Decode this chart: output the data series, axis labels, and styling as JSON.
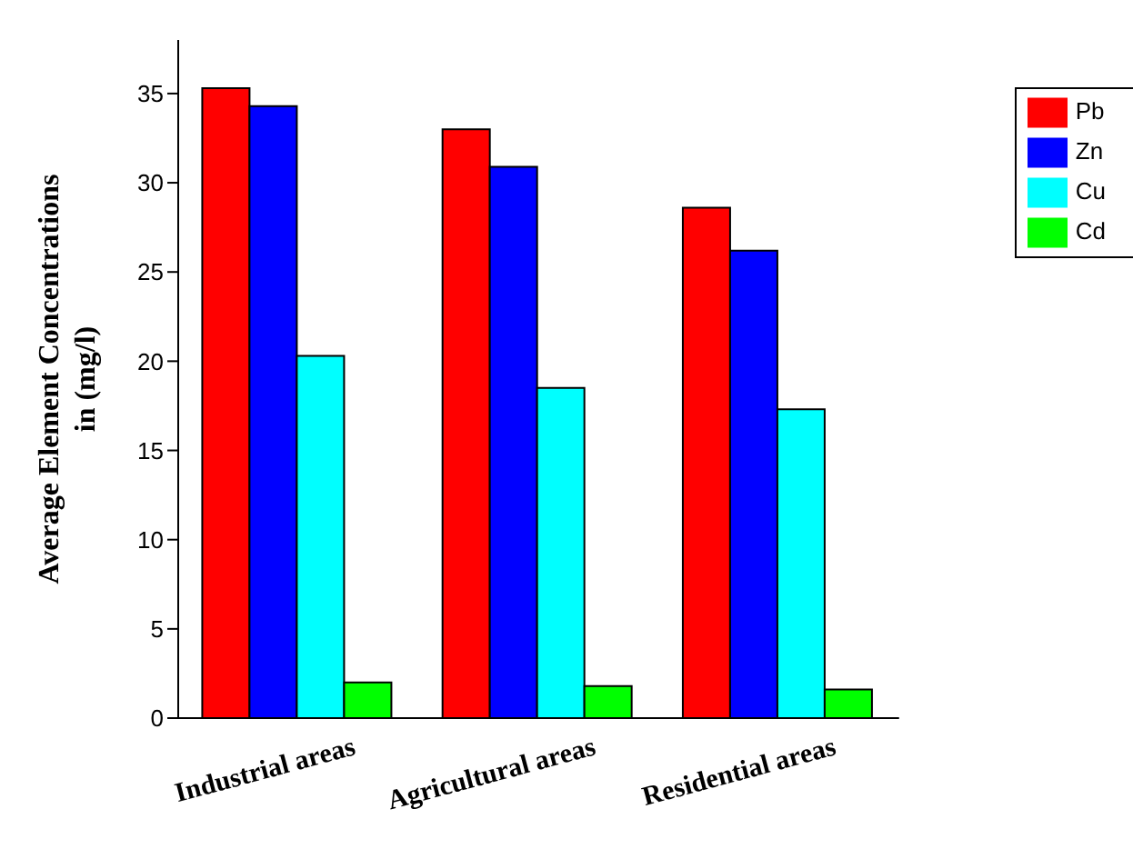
{
  "chart_data": {
    "type": "bar",
    "ylabel": "Average Element Concentrations in (mg/l)",
    "categories": [
      "Industrial areas",
      "Agricultural areas",
      "Residential areas"
    ],
    "series": [
      {
        "name": "Pb",
        "color": "#ff0000",
        "values": [
          35.3,
          33.0,
          28.6
        ]
      },
      {
        "name": "Zn",
        "color": "#0000ff",
        "values": [
          34.3,
          30.9,
          26.2
        ]
      },
      {
        "name": "Cu",
        "color": "#00ffff",
        "values": [
          20.3,
          18.5,
          17.3
        ]
      },
      {
        "name": "Cd",
        "color": "#00ff00",
        "values": [
          2.0,
          1.8,
          1.6
        ]
      }
    ],
    "ylim": [
      0,
      38
    ],
    "yticks": [
      0,
      5,
      10,
      15,
      20,
      25,
      30,
      35
    ],
    "grid": false,
    "legend": "top right"
  }
}
